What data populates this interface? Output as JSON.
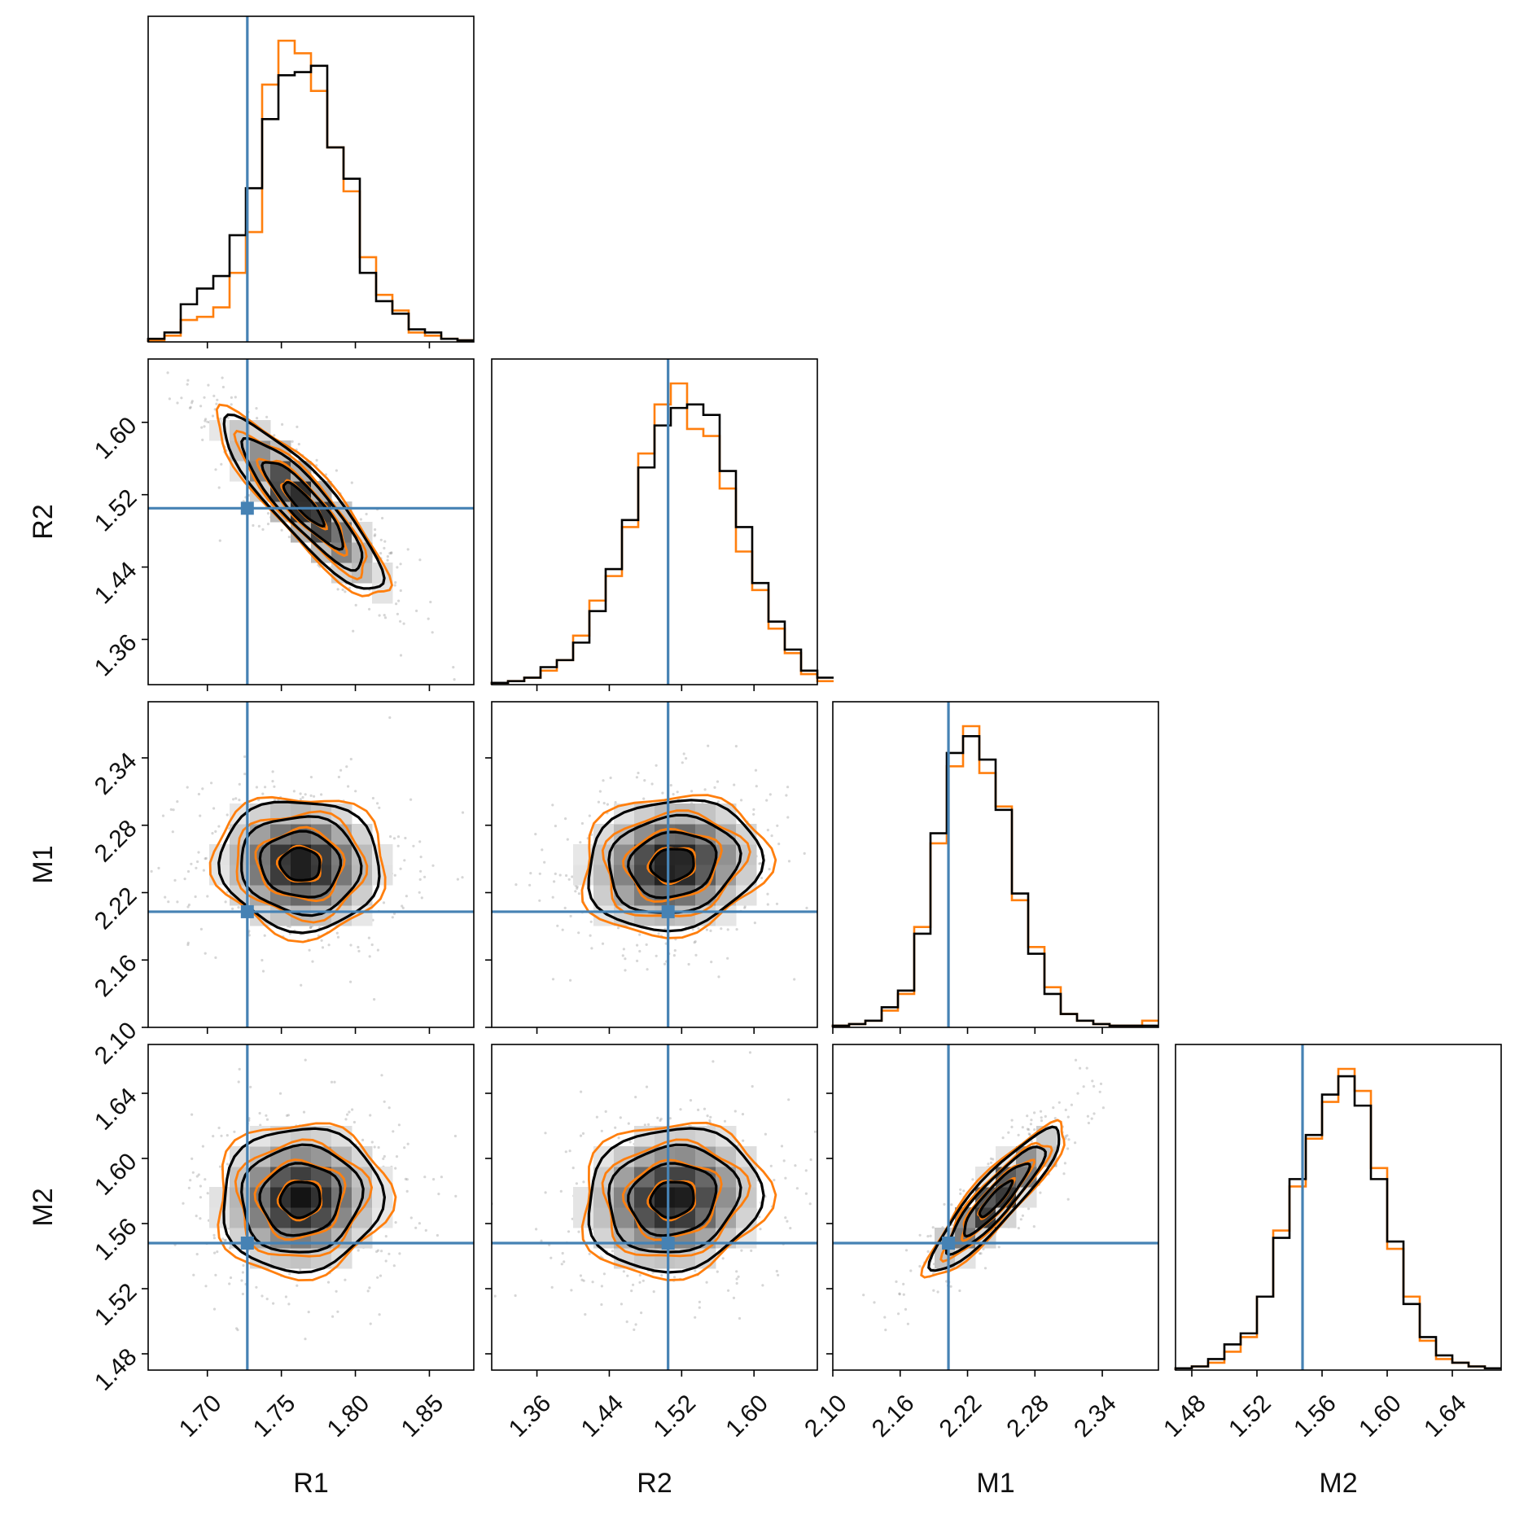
{
  "chart_data": {
    "type": "corner",
    "parameters": [
      "R1",
      "R2",
      "M1",
      "M2"
    ],
    "ranges": {
      "R1": [
        1.66,
        1.88
      ],
      "R2": [
        1.31,
        1.67
      ],
      "M1": [
        2.1,
        2.39
      ],
      "M2": [
        1.47,
        1.67
      ]
    },
    "ticks": {
      "R1": [
        "1.70",
        "1.75",
        "1.80",
        "1.85"
      ],
      "R2": [
        "1.36",
        "1.44",
        "1.52",
        "1.60"
      ],
      "M1": [
        "2.10",
        "2.16",
        "2.22",
        "2.28",
        "2.34"
      ],
      "M2": [
        "1.48",
        "1.52",
        "1.56",
        "1.60",
        "1.64"
      ]
    },
    "truths": {
      "R1": 1.727,
      "R2": 1.505,
      "M1": 2.203,
      "M2": 1.548
    },
    "truth_color": "#4682b4",
    "series": [
      {
        "color": "#000000"
      },
      {
        "color": "#ff7f0e"
      }
    ],
    "histograms": {
      "R1": {
        "edges_start": 1.66,
        "edges_step": 0.011,
        "series_0": [
          1,
          3,
          12,
          17,
          21,
          34,
          49,
          71,
          85,
          86,
          88,
          62,
          52,
          22,
          13,
          9,
          4,
          3,
          1,
          0.5
        ],
        "series_1": [
          0.5,
          2,
          7,
          8,
          11,
          22,
          35,
          82,
          96,
          92,
          80,
          62,
          48,
          27,
          15,
          10,
          3,
          2,
          1,
          0.5
        ]
      },
      "R2": {
        "edges_start": 1.31,
        "edges_step": 0.018,
        "series_0": [
          0.5,
          1,
          2,
          5,
          7,
          12,
          21,
          33,
          47,
          62,
          74,
          79,
          80,
          77,
          61,
          45,
          29,
          18,
          10,
          4,
          2
        ],
        "series_1": [
          0.5,
          1,
          2,
          4,
          7,
          14,
          24,
          31,
          45,
          66,
          80,
          86,
          73,
          71,
          56,
          38,
          27,
          16,
          9,
          3,
          1
        ]
      },
      "M1": {
        "edges_start": 2.1,
        "edges_step": 0.0145,
        "series_0": [
          0.5,
          1,
          2,
          6,
          11,
          28,
          58,
          82,
          87,
          80,
          65,
          40,
          22,
          10,
          4,
          2,
          1,
          0.5,
          0.5,
          0.5
        ],
        "series_1": [
          0.5,
          1,
          2,
          5,
          10,
          30,
          55,
          78,
          90,
          76,
          66,
          38,
          24,
          12,
          4,
          2,
          1,
          0.5,
          0.5,
          2
        ]
      },
      "M2": {
        "edges_start": 1.47,
        "edges_step": 0.01,
        "series_0": [
          0.5,
          1,
          3,
          7,
          10,
          20,
          36,
          52,
          64,
          75,
          80,
          72,
          52,
          35,
          18,
          9,
          4,
          2,
          1,
          0.5
        ],
        "series_1": [
          0.5,
          1,
          2,
          5,
          9,
          20,
          38,
          50,
          63,
          73,
          82,
          76,
          55,
          33,
          20,
          8,
          3,
          2,
          1,
          0.5
        ]
      }
    },
    "pairs": [
      {
        "x": "R1",
        "y": "R2",
        "mean": [
          1.765,
          1.51
        ],
        "sd": [
          0.027,
          0.048
        ],
        "rho": -0.88,
        "points": 500
      },
      {
        "x": "R1",
        "y": "M1",
        "mean": [
          1.763,
          2.245
        ],
        "sd": [
          0.027,
          0.029
        ],
        "rho": -0.05,
        "points": 500
      },
      {
        "x": "R2",
        "y": "M1",
        "mean": [
          1.51,
          2.245
        ],
        "sd": [
          0.048,
          0.029
        ],
        "rho": 0.12,
        "points": 500
      },
      {
        "x": "R1",
        "y": "M2",
        "mean": [
          1.763,
          1.575
        ],
        "sd": [
          0.027,
          0.022
        ],
        "rho": 0.05,
        "points": 500
      },
      {
        "x": "R2",
        "y": "M2",
        "mean": [
          1.51,
          1.575
        ],
        "sd": [
          0.048,
          0.022
        ],
        "rho": 0.1,
        "points": 500
      },
      {
        "x": "M1",
        "y": "M2",
        "mean": [
          2.245,
          1.575
        ],
        "sd": [
          0.029,
          0.022
        ],
        "rho": 0.9,
        "points": 500
      }
    ],
    "contour_levels_sigma": [
      0.5,
      1.0,
      1.5,
      2.0
    ]
  }
}
